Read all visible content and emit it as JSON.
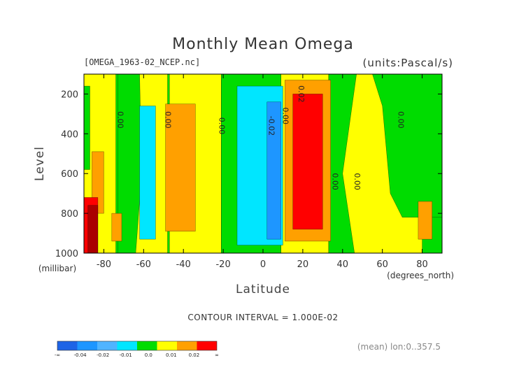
{
  "chart_data": {
    "type": "contour",
    "title": "Monthly Mean Omega",
    "file_label": "[OMEGA_1963-02_NCEP.nc]",
    "units_label": "(units:Pascal/s)",
    "xlabel": "Latitude",
    "x_unit": "(degrees_north)",
    "ylabel": "Level",
    "y_unit": "(millibar)",
    "xlim": [
      -90,
      90
    ],
    "ylim": [
      1000,
      100
    ],
    "x_ticks": [
      -80,
      -60,
      -40,
      -20,
      0,
      20,
      40,
      60,
      80
    ],
    "x_tick_labels": [
      "-80",
      "-60",
      "-40",
      "-20",
      "0",
      "20",
      "40",
      "60",
      "80"
    ],
    "y_ticks": [
      200,
      400,
      600,
      800,
      1000
    ],
    "y_tick_labels": [
      "200",
      "400",
      "600",
      "800",
      "1000"
    ],
    "contour_interval_text": "CONTOUR INTERVAL = 1.000E-02",
    "mean_note": "(mean) lon:0..357.5",
    "contour_labels": [
      {
        "text": "0.00",
        "lat": -73,
        "lev": 330
      },
      {
        "text": "0.00",
        "lat": -49,
        "lev": 330
      },
      {
        "text": "0.00",
        "lat": -22,
        "lev": 360
      },
      {
        "text": "-0.02",
        "lat": 3,
        "lev": 360
      },
      {
        "text": "0.00",
        "lat": 10,
        "lev": 310
      },
      {
        "text": "0.02",
        "lat": 18,
        "lev": 200
      },
      {
        "text": "0.00",
        "lat": 35,
        "lev": 640
      },
      {
        "text": "0.00",
        "lat": 46,
        "lev": 640
      },
      {
        "text": "0.00",
        "lat": 68,
        "lev": 330
      }
    ],
    "colorbar": {
      "labels": [
        "-∞",
        "-0.04",
        "-0.02",
        "-0.01",
        "0.0",
        "0.01",
        "0.02",
        "∞"
      ],
      "colors": [
        "#1e64e6",
        "#1e96ff",
        "#50b4ff",
        "#00e6ff",
        "#00dc00",
        "#ffff00",
        "#ffa000",
        "#ff0000"
      ]
    },
    "levels": {
      "c_m04": "#1e64e6",
      "c_m02": "#1e96ff",
      "c_m01": "#00e6ff",
      "c_0": "#00dc00",
      "c_01": "#ffff00",
      "c_02": "#ffa000",
      "c_03": "#ff0000",
      "c_max": "#aa0000"
    },
    "regions": [
      {
        "name": "yellow-band-south",
        "color": "c_01",
        "poly": [
          [
            -90,
            100
          ],
          [
            -74,
            100
          ],
          [
            -74,
            1000
          ],
          [
            -90,
            1000
          ]
        ]
      },
      {
        "name": "yellow-band-sh-mid",
        "color": "c_01",
        "poly": [
          [
            -66,
            100
          ],
          [
            -48,
            100
          ],
          [
            -48,
            1000
          ],
          [
            -66,
            1000
          ]
        ]
      },
      {
        "name": "yellow-band-sh-sub",
        "color": "c_01",
        "poly": [
          [
            -47,
            100
          ],
          [
            -21,
            100
          ],
          [
            -21,
            1000
          ],
          [
            -47,
            1000
          ]
        ]
      },
      {
        "name": "yellow-band-eq",
        "color": "c_01",
        "poly": [
          [
            9,
            100
          ],
          [
            33,
            100
          ],
          [
            33,
            1000
          ],
          [
            9,
            1000
          ]
        ]
      },
      {
        "name": "yellow-band-nh-mid",
        "color": "c_01",
        "poly": [
          [
            38,
            100
          ],
          [
            80,
            100
          ],
          [
            80,
            1000
          ],
          [
            38,
            1000
          ]
        ]
      },
      {
        "name": "green-patch-south-upper",
        "color": "c_0",
        "poly": [
          [
            -90,
            160
          ],
          [
            -87,
            160
          ],
          [
            -87,
            580
          ],
          [
            -90,
            580
          ]
        ]
      },
      {
        "name": "green-region-sh",
        "color": "c_0",
        "poly": [
          [
            -73,
            100
          ],
          [
            -62,
            100
          ],
          [
            -61,
            600
          ],
          [
            -64,
            1000
          ],
          [
            -73,
            1000
          ]
        ]
      },
      {
        "name": "green-region-eq",
        "color": "c_0",
        "poly": [
          [
            -21,
            100
          ],
          [
            9,
            100
          ],
          [
            9,
            1000
          ],
          [
            -21,
            1000
          ]
        ]
      },
      {
        "name": "green-region-nh",
        "color": "c_0",
        "poly": [
          [
            33,
            100
          ],
          [
            47,
            100
          ],
          [
            40,
            600
          ],
          [
            46,
            1000
          ],
          [
            33,
            1000
          ]
        ]
      },
      {
        "name": "green-region-nh-high",
        "color": "c_0",
        "poly": [
          [
            55,
            100
          ],
          [
            90,
            100
          ],
          [
            90,
            820
          ],
          [
            70,
            820
          ],
          [
            64,
            700
          ],
          [
            60,
            260
          ],
          [
            55,
            100
          ]
        ]
      },
      {
        "name": "orange-patch-south-upper",
        "color": "c_02",
        "poly": [
          [
            -86,
            490
          ],
          [
            -80,
            490
          ],
          [
            -80,
            800
          ],
          [
            -86,
            800
          ]
        ]
      },
      {
        "name": "orange-patch-south-lower",
        "color": "c_02",
        "poly": [
          [
            -76,
            800
          ],
          [
            -71,
            800
          ],
          [
            -71,
            940
          ],
          [
            -76,
            940
          ]
        ]
      },
      {
        "name": "orange-patch-sh-mid",
        "color": "c_02",
        "poly": [
          [
            -49,
            250
          ],
          [
            -34,
            250
          ],
          [
            -34,
            890
          ],
          [
            -49,
            890
          ]
        ]
      },
      {
        "name": "cyan-region-sh",
        "color": "c_m01",
        "poly": [
          [
            -62,
            260
          ],
          [
            -54,
            260
          ],
          [
            -54,
            930
          ],
          [
            -62,
            930
          ]
        ]
      },
      {
        "name": "cyan-region-eq",
        "color": "c_m01",
        "poly": [
          [
            -13,
            160
          ],
          [
            10,
            160
          ],
          [
            10,
            960
          ],
          [
            -13,
            960
          ]
        ]
      },
      {
        "name": "blue-patch-eq",
        "color": "c_m02",
        "poly": [
          [
            2,
            240
          ],
          [
            9,
            240
          ],
          [
            9,
            930
          ],
          [
            2,
            930
          ]
        ]
      },
      {
        "name": "orange-region-eq",
        "color": "c_02",
        "poly": [
          [
            11,
            130
          ],
          [
            34,
            130
          ],
          [
            34,
            940
          ],
          [
            11,
            940
          ]
        ]
      },
      {
        "name": "red-region-eq",
        "color": "c_03",
        "poly": [
          [
            15,
            200
          ],
          [
            30,
            200
          ],
          [
            30,
            880
          ],
          [
            15,
            880
          ]
        ]
      },
      {
        "name": "orange-patch-nh-high",
        "color": "c_02",
        "poly": [
          [
            78,
            740
          ],
          [
            85,
            740
          ],
          [
            85,
            930
          ],
          [
            78,
            930
          ]
        ]
      },
      {
        "name": "red-patch-south",
        "color": "c_03",
        "poly": [
          [
            -90,
            720
          ],
          [
            -83,
            720
          ],
          [
            -83,
            1000
          ],
          [
            -90,
            1000
          ]
        ]
      },
      {
        "name": "darkred-patch-south",
        "color": "c_max",
        "poly": [
          [
            -88,
            760
          ],
          [
            -83,
            760
          ],
          [
            -83,
            1000
          ],
          [
            -88,
            1000
          ]
        ]
      }
    ]
  }
}
